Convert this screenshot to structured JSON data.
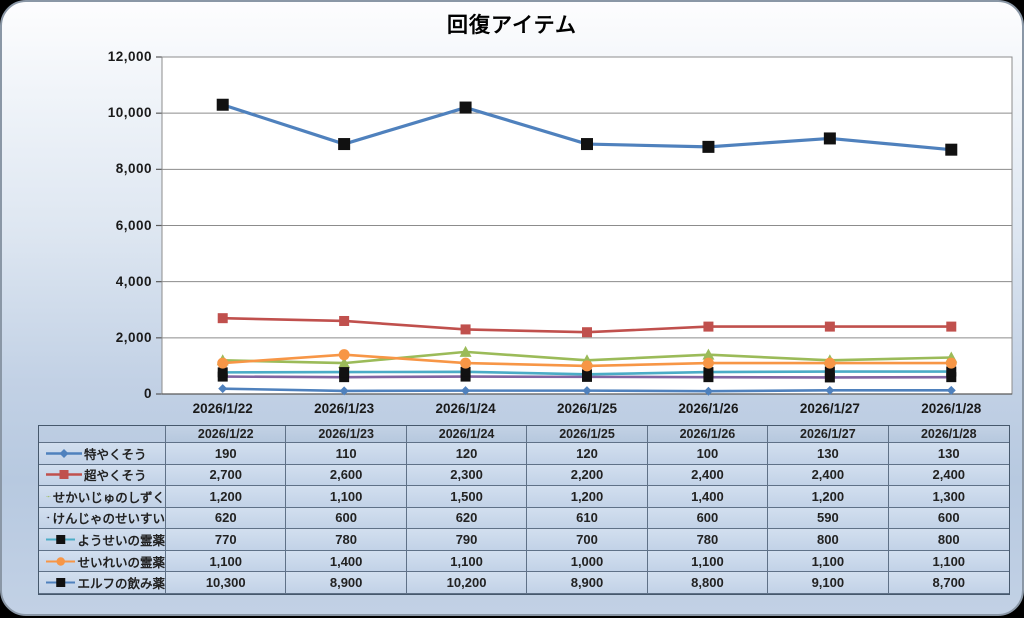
{
  "title": "回復アイテム",
  "chart_data": {
    "type": "line",
    "title": "回復アイテム",
    "categories": [
      "2026/1/22",
      "2026/1/23",
      "2026/1/24",
      "2026/1/25",
      "2026/1/26",
      "2026/1/27",
      "2026/1/28"
    ],
    "y_ticks": [
      0,
      2000,
      4000,
      6000,
      8000,
      10000,
      12000
    ],
    "ylim": [
      0,
      12000
    ],
    "grid": true,
    "legend_position": "table-left-column",
    "plot_bg": "#ffffff",
    "gridline_color": "#8c8c8c",
    "axis_color": "#595959",
    "series": [
      {
        "name": "特やくそう",
        "values": [
          190,
          110,
          120,
          120,
          100,
          130,
          130
        ],
        "color": "#4F81BD",
        "marker": "diamond",
        "marker_color": "#4F81BD"
      },
      {
        "name": "超やくそう",
        "values": [
          2700,
          2600,
          2300,
          2200,
          2400,
          2400,
          2400
        ],
        "color": "#C0504D",
        "marker": "square",
        "marker_color": "#C0504D"
      },
      {
        "name": "せかいじゅのしずく",
        "values": [
          1200,
          1100,
          1500,
          1200,
          1400,
          1200,
          1300
        ],
        "color": "#9BBB59",
        "marker": "triangle",
        "marker_color": "#9BBB59"
      },
      {
        "name": "けんじゃのせいすい",
        "values": [
          620,
          600,
          620,
          610,
          600,
          590,
          600
        ],
        "color": "#8064A2",
        "marker": "square",
        "marker_color": "#111111"
      },
      {
        "name": "ようせいの霊薬",
        "values": [
          770,
          780,
          790,
          700,
          780,
          800,
          800
        ],
        "color": "#4BACC6",
        "marker": "square",
        "marker_color": "#111111"
      },
      {
        "name": "せいれいの霊薬",
        "values": [
          1100,
          1400,
          1100,
          1000,
          1100,
          1100,
          1100
        ],
        "color": "#F79646",
        "marker": "circle",
        "marker_color": "#F79646"
      },
      {
        "name": "エルフの飲み薬",
        "values": [
          10300,
          8900,
          10200,
          8900,
          8800,
          9100,
          8700
        ],
        "color": "#4F81BD",
        "marker": "square",
        "marker_color": "#111111"
      }
    ]
  }
}
